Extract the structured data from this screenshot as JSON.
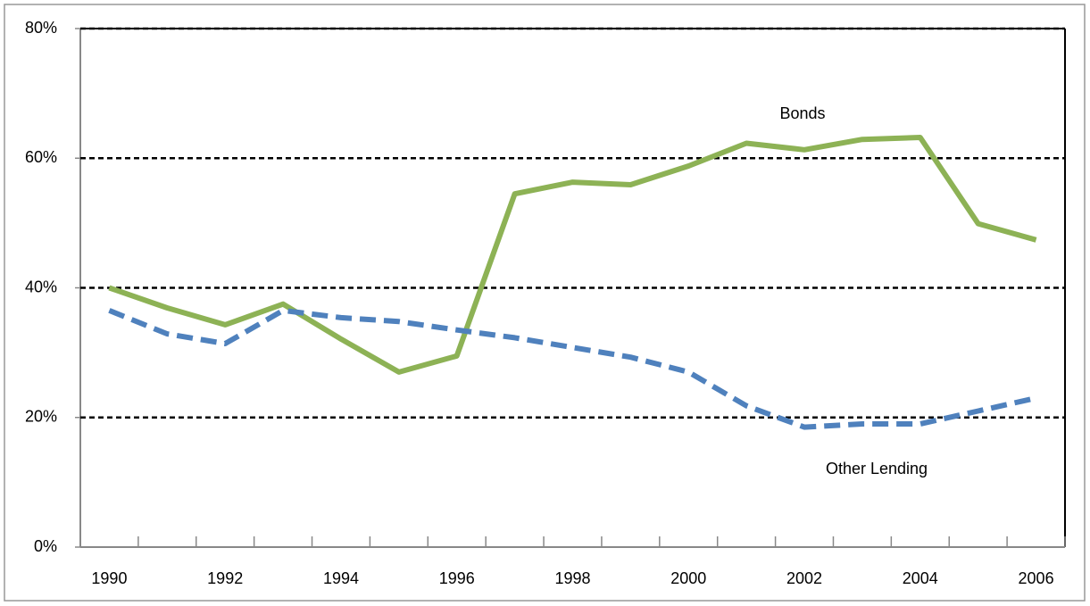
{
  "chart_data": {
    "type": "line",
    "categories": [
      "1990",
      null,
      "1992",
      null,
      "1994",
      null,
      "1996",
      null,
      "1998",
      null,
      "2000",
      null,
      "2002",
      null,
      "2004",
      null,
      "2006"
    ],
    "series": [
      {
        "name": "Bonds",
        "color": "#8db255",
        "dash": false,
        "values": [
          40,
          36.9,
          34.3,
          37.5,
          32.1,
          27,
          29.5,
          54.5,
          56.3,
          55.9,
          58.8,
          62.3,
          61.3,
          62.9,
          63.2,
          49.9,
          47.4
        ]
      },
      {
        "name": "Other Lending",
        "color": "#4f81bd",
        "dash": true,
        "values": [
          36.5,
          32.9,
          31.4,
          36.5,
          35.4,
          34.8,
          33.5,
          32.3,
          30.8,
          29.3,
          27,
          21.8,
          18.5,
          19,
          19,
          21,
          23
        ]
      }
    ],
    "ylim": [
      0,
      80
    ],
    "yticks": [
      {
        "value": 0,
        "label": "0%"
      },
      {
        "value": 20,
        "label": "20%"
      },
      {
        "value": 40,
        "label": "40%"
      },
      {
        "value": 60,
        "label": "60%"
      },
      {
        "value": 80,
        "label": "80%"
      }
    ],
    "grid": true
  }
}
